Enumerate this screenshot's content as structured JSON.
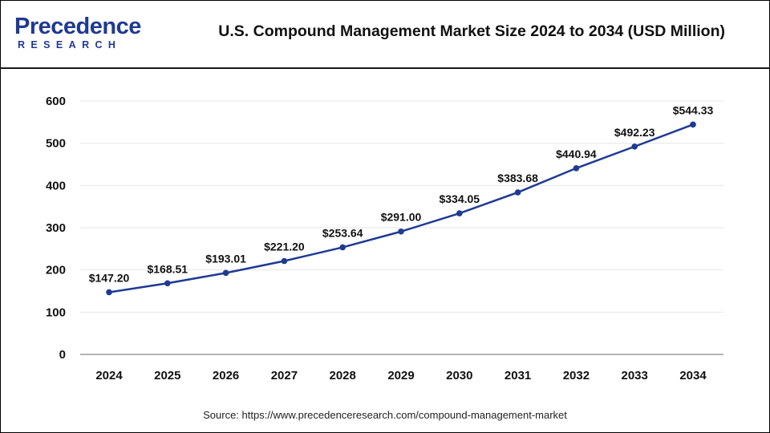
{
  "header": {
    "logo_main": "Precedence",
    "logo_sub": "RESEARCH",
    "title": "U.S. Compound Management Market Size 2024 to 2034 (USD Million)"
  },
  "source": "Source: https://www.precedenceresearch.com/compound-management-market",
  "chart_data": {
    "type": "line",
    "title": "U.S. Compound Management Market Size 2024 to 2034 (USD Million)",
    "xlabel": "",
    "ylabel": "",
    "categories": [
      "2024",
      "2025",
      "2026",
      "2027",
      "2028",
      "2029",
      "2030",
      "2031",
      "2032",
      "2033",
      "2034"
    ],
    "series": [
      {
        "values": [
          147.2,
          168.51,
          193.01,
          221.2,
          253.64,
          291.0,
          334.05,
          383.68,
          440.94,
          492.23,
          544.33
        ],
        "labels": [
          "$147.20",
          "$168.51",
          "$193.01",
          "$221.20",
          "$253.64",
          "$291.00",
          "$334.05",
          "$383.68",
          "$440.94",
          "$492.23",
          "$544.33"
        ],
        "color": "#1f3a93"
      }
    ],
    "ylim": [
      0,
      600
    ],
    "yticks": [
      "0",
      "100",
      "200",
      "300",
      "400",
      "500",
      "600"
    ],
    "grid": true,
    "legend": "none"
  }
}
